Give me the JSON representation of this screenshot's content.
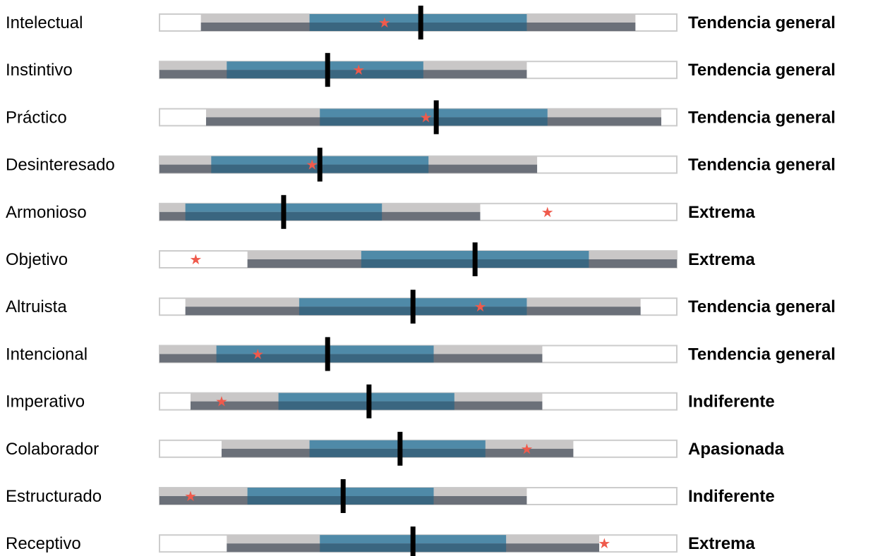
{
  "colors": {
    "track_border": "#cccccc",
    "range_light": "#c9c7c7",
    "range_dark": "#6b7079",
    "core_light": "#4f8aa8",
    "core_dark": "#3a6680",
    "marker": "#000000",
    "star": "#ef5a4c"
  },
  "chart_data": {
    "type": "bullet",
    "title": "",
    "xlabel": "",
    "ylabel": "",
    "xlim": [
      0,
      100
    ],
    "legend": "none",
    "grid": false,
    "marker_symbol": "★",
    "rows": [
      {
        "label": "Intelectual",
        "range": [
          8,
          92
        ],
        "core": [
          29,
          71
        ],
        "marker": 50.5,
        "star": 43.5,
        "status": "Tendencia general"
      },
      {
        "label": "Instintivo",
        "range": [
          0,
          71
        ],
        "core": [
          13,
          51
        ],
        "marker": 32.5,
        "star": 38.5,
        "status": "Tendencia general"
      },
      {
        "label": "Práctico",
        "range": [
          9,
          97
        ],
        "core": [
          31,
          75
        ],
        "marker": 53.5,
        "star": 51.5,
        "status": "Tendencia general"
      },
      {
        "label": "Desinteresado",
        "range": [
          0,
          73
        ],
        "core": [
          10,
          52
        ],
        "marker": 31.0,
        "star": 29.5,
        "status": "Tendencia general"
      },
      {
        "label": "Armonioso",
        "range": [
          0,
          62
        ],
        "core": [
          5,
          43
        ],
        "marker": 24.0,
        "star": 75.0,
        "status": "Extrema"
      },
      {
        "label": "Objetivo",
        "range": [
          17,
          100
        ],
        "core": [
          39,
          83
        ],
        "marker": 61.0,
        "star": 7.0,
        "status": "Extrema"
      },
      {
        "label": "Altruista",
        "range": [
          5,
          93
        ],
        "core": [
          27,
          71
        ],
        "marker": 49.0,
        "star": 62.0,
        "status": "Tendencia general"
      },
      {
        "label": "Intencional",
        "range": [
          0,
          74
        ],
        "core": [
          11,
          53
        ],
        "marker": 32.5,
        "star": 19.0,
        "status": "Tendencia general"
      },
      {
        "label": "Imperativo",
        "range": [
          6,
          74
        ],
        "core": [
          23,
          57
        ],
        "marker": 40.5,
        "star": 12.0,
        "status": "Indiferente"
      },
      {
        "label": "Colaborador",
        "range": [
          12,
          80
        ],
        "core": [
          29,
          63
        ],
        "marker": 46.5,
        "star": 71.0,
        "status": "Apasionada"
      },
      {
        "label": "Estructurado",
        "range": [
          0,
          71
        ],
        "core": [
          17,
          53
        ],
        "marker": 35.5,
        "star": 6.0,
        "status": "Indiferente"
      },
      {
        "label": "Receptivo",
        "range": [
          13,
          85
        ],
        "core": [
          31,
          67
        ],
        "marker": 49.0,
        "star": 86.0,
        "status": "Extrema"
      }
    ]
  }
}
